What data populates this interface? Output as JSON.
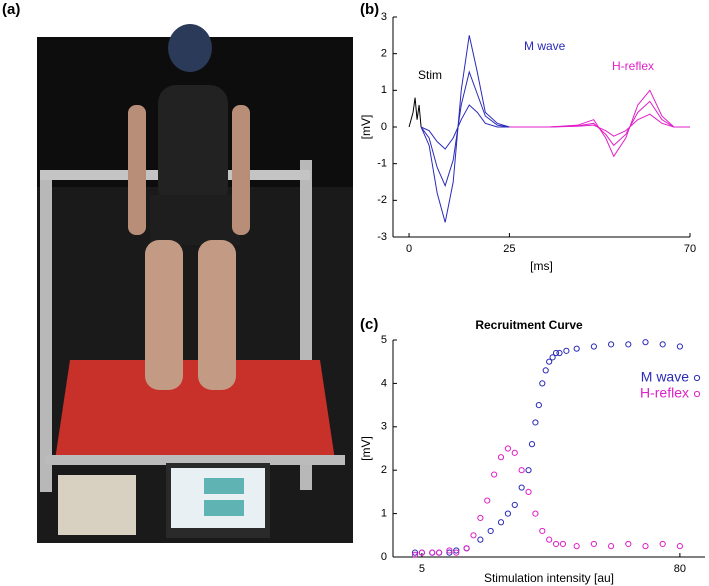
{
  "panel_labels": [
    "(a)",
    "(b)",
    "(c)"
  ],
  "chart_data": [
    {
      "type": "line",
      "xlabel": "[ms]",
      "ylabel": "[mV]",
      "xlim": [
        -4,
        70
      ],
      "xticks": [
        0,
        25,
        70
      ],
      "ylim": [
        -3,
        3
      ],
      "yticks": [
        -3,
        -2,
        -1,
        0,
        1,
        2,
        3
      ],
      "annotations": [
        {
          "text": "Stim",
          "color": "#000000"
        },
        {
          "text": "M wave",
          "color": "#2a2ab8"
        },
        {
          "text": "H-reflex",
          "color": "#e020c8"
        }
      ],
      "series": [
        {
          "color": "#000000",
          "x": [
            0,
            1,
            1.5,
            2,
            2.5,
            3
          ],
          "values": [
            0,
            0.4,
            0.8,
            0.2,
            0.6,
            0
          ]
        },
        {
          "color": "#2a2ab8",
          "x": [
            3,
            5,
            7,
            9,
            11,
            13,
            15,
            17,
            19,
            22,
            25
          ],
          "values": [
            0,
            -0.5,
            -1.8,
            -2.6,
            -1.5,
            1.0,
            2.5,
            1.5,
            0.4,
            0.1,
            0
          ]
        },
        {
          "color": "#2a2ab8",
          "x": [
            3,
            5,
            7,
            9,
            11,
            13,
            15,
            17,
            19,
            22,
            25
          ],
          "values": [
            0,
            -0.3,
            -1.1,
            -1.6,
            -0.9,
            0.6,
            1.5,
            0.9,
            0.3,
            0.05,
            0
          ]
        },
        {
          "color": "#2a2ab8",
          "x": [
            3,
            5,
            7,
            9,
            11,
            13,
            15,
            17,
            19,
            22,
            25
          ],
          "values": [
            0,
            -0.1,
            -0.4,
            -0.6,
            -0.3,
            0.2,
            0.6,
            0.4,
            0.1,
            0,
            0
          ]
        },
        {
          "color": "#e020c8",
          "x": [
            25,
            35,
            42,
            46,
            49,
            51,
            54,
            57,
            60,
            63,
            66,
            70
          ],
          "values": [
            0,
            0,
            0.05,
            0.2,
            -0.3,
            -0.8,
            -0.3,
            0.6,
            1.0,
            0.3,
            0,
            0
          ]
        },
        {
          "color": "#e020c8",
          "x": [
            25,
            35,
            42,
            46,
            49,
            51,
            54,
            57,
            60,
            63,
            66,
            70
          ],
          "values": [
            0,
            0,
            0.03,
            0.1,
            -0.2,
            -0.5,
            -0.2,
            0.4,
            0.7,
            0.2,
            0,
            0
          ]
        },
        {
          "color": "#e020c8",
          "x": [
            25,
            35,
            42,
            46,
            49,
            51,
            54,
            57,
            60,
            63,
            66,
            70
          ],
          "values": [
            0,
            0,
            0.02,
            0.05,
            -0.1,
            -0.25,
            -0.1,
            0.2,
            0.35,
            0.1,
            0,
            0
          ]
        }
      ]
    },
    {
      "type": "scatter",
      "title": "Recruitment Curve",
      "xlabel": "Stimulation intensity [au]",
      "ylabel": "[mV]",
      "xlim": [
        -3.4,
        87.3
      ],
      "xticks": [
        5,
        80
      ],
      "ylim": [
        0,
        5
      ],
      "yticks": [
        0,
        1,
        2,
        3,
        4,
        5
      ],
      "legend": "upper right",
      "series": [
        {
          "name": "M wave",
          "color": "#2a2ab8",
          "x": [
            3,
            5,
            8,
            10,
            13,
            15,
            18,
            22,
            25,
            28,
            30,
            32,
            34,
            36,
            37,
            38,
            39,
            40,
            41,
            42,
            43,
            44,
            45,
            47,
            50,
            55,
            60,
            65,
            70,
            75,
            80
          ],
          "values": [
            0.1,
            0.1,
            0.1,
            0.1,
            0.1,
            0.15,
            0.2,
            0.4,
            0.6,
            0.8,
            1.0,
            1.2,
            1.6,
            2.0,
            2.6,
            3.1,
            3.5,
            4.0,
            4.3,
            4.5,
            4.6,
            4.7,
            4.7,
            4.75,
            4.8,
            4.85,
            4.9,
            4.9,
            4.95,
            4.9,
            4.85
          ]
        },
        {
          "name": "H-reflex",
          "color": "#e020c8",
          "x": [
            3,
            5,
            8,
            10,
            13,
            15,
            18,
            20,
            22,
            24,
            26,
            28,
            30,
            32,
            34,
            36,
            38,
            40,
            42,
            44,
            46,
            50,
            55,
            60,
            65,
            70,
            75,
            80
          ],
          "values": [
            0.05,
            0.1,
            0.1,
            0.1,
            0.15,
            0.1,
            0.2,
            0.5,
            0.9,
            1.3,
            1.9,
            2.3,
            2.5,
            2.4,
            2.0,
            1.5,
            1.0,
            0.6,
            0.4,
            0.3,
            0.3,
            0.25,
            0.3,
            0.25,
            0.3,
            0.25,
            0.3,
            0.25
          ]
        }
      ]
    }
  ]
}
